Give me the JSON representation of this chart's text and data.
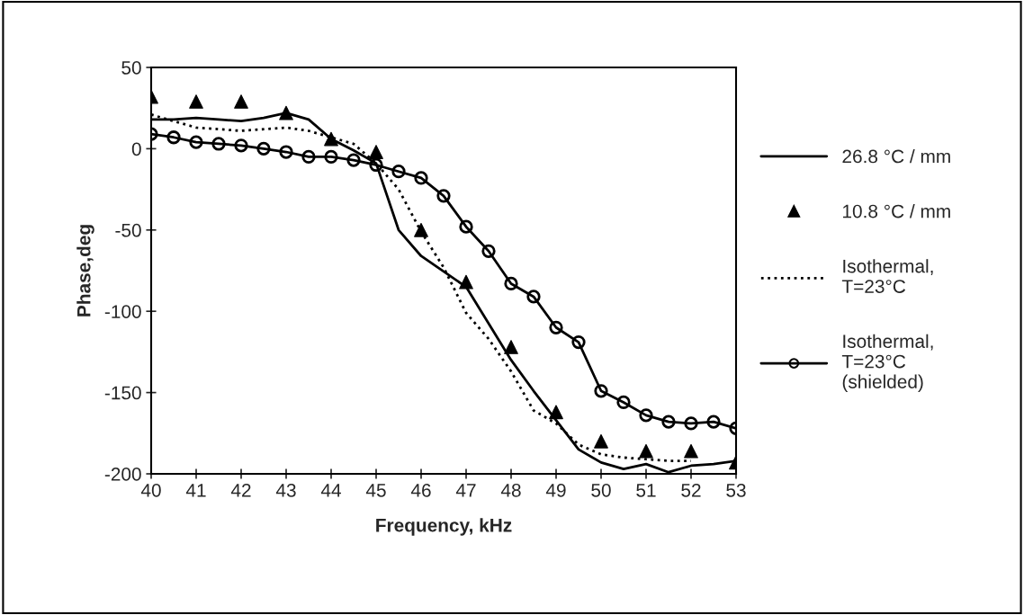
{
  "chart_data": {
    "type": "line",
    "xlabel": "Frequency, kHz",
    "ylabel": "Phase,deg",
    "xlim": [
      40,
      53
    ],
    "xticks": [
      40,
      41,
      42,
      43,
      44,
      45,
      46,
      47,
      48,
      49,
      50,
      51,
      52,
      53
    ],
    "ylim": [
      -200,
      50
    ],
    "yticks": [
      -200,
      -150,
      -100,
      -50,
      0,
      50
    ],
    "grid": false,
    "legend": "right",
    "series": [
      {
        "name": "26.8 °C / mm",
        "color": "#000000",
        "marker": "none",
        "line_style": "solid",
        "x": [
          40,
          40.5,
          41,
          41.5,
          42,
          42.5,
          43,
          43.5,
          44,
          44.5,
          45,
          45.5,
          46,
          47,
          48,
          48.5,
          49,
          49.5,
          50,
          50.5,
          51,
          51.5,
          52,
          52.5,
          53
        ],
        "values": [
          18,
          18,
          19,
          18,
          17,
          19,
          22,
          18,
          6,
          -1,
          -9,
          -50,
          -66,
          -85,
          -130,
          -149,
          -167,
          -185,
          -193,
          -197,
          -194,
          -199,
          -195,
          -194,
          -192
        ]
      },
      {
        "name": "10.8 °C / mm",
        "type": "scatter",
        "color": "#000000",
        "marker": "triangle",
        "x": [
          40,
          41,
          42,
          43,
          44,
          45,
          46,
          47,
          48,
          49,
          50,
          51,
          52,
          53
        ],
        "values": [
          32,
          29,
          29,
          22,
          6,
          -2,
          -50,
          -82,
          -122,
          -162,
          -180,
          -186,
          -186,
          -193
        ]
      },
      {
        "name": "Isothermal,\nT=23°C",
        "color": "#000000",
        "marker": "none",
        "line_style": "dotted",
        "x": [
          40,
          41,
          42,
          43,
          43.5,
          44,
          44.5,
          45,
          45.5,
          46,
          46.5,
          47,
          47.5,
          48,
          48.5,
          49,
          49.5,
          50,
          50.5,
          51,
          51.5,
          52
        ],
        "values": [
          21,
          13,
          11,
          13,
          11,
          7,
          3,
          -9,
          -25,
          -51,
          -73,
          -101,
          -117,
          -137,
          -161,
          -169,
          -182,
          -188,
          -190,
          -191,
          -192,
          -192
        ]
      },
      {
        "name": "Isothermal,\nT=23°C\n(shielded)",
        "color": "#000000",
        "marker": "circle",
        "line_style": "solid",
        "x": [
          40,
          40.5,
          41,
          41.5,
          42,
          42.5,
          43,
          43.5,
          44,
          44.5,
          45,
          45.5,
          46,
          46.5,
          47,
          47.5,
          48,
          48.5,
          49,
          49.5,
          50,
          50.5,
          51,
          51.5,
          52,
          52.5,
          53
        ],
        "values": [
          9,
          7,
          4,
          3,
          2,
          0,
          -2,
          -5,
          -5,
          -7,
          -10,
          -14,
          -18,
          -29,
          -48,
          -63,
          -83,
          -91,
          -110,
          -119,
          -149,
          -156,
          -164,
          -168,
          -169,
          -168,
          -172
        ]
      }
    ]
  }
}
